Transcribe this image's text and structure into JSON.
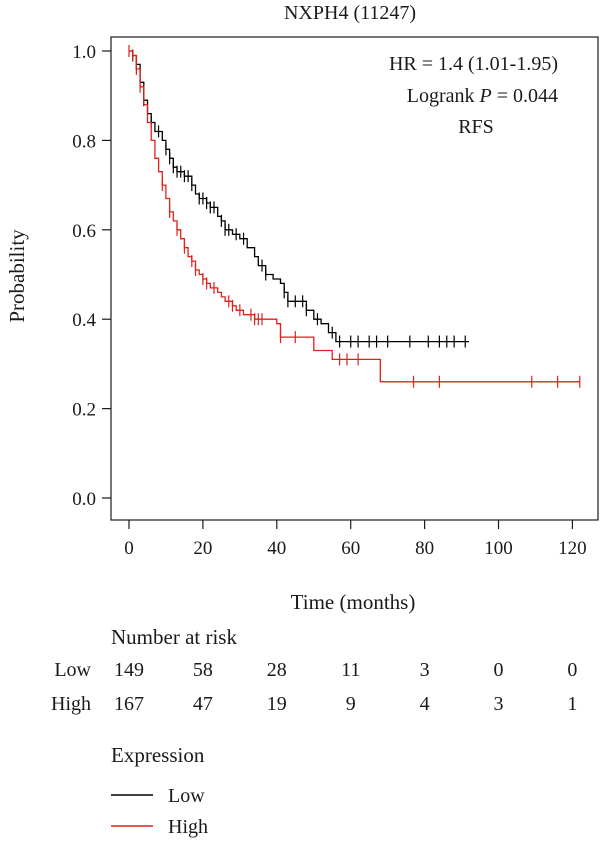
{
  "chart_data": {
    "type": "line",
    "title": "NXPH4 (11247)",
    "xlabel": "Time (months)",
    "ylabel": "Probability",
    "xlim": [
      0,
      125
    ],
    "ylim": [
      0,
      1.05
    ],
    "x_ticks": [
      0,
      20,
      40,
      60,
      80,
      100,
      120
    ],
    "y_ticks": [
      0.0,
      0.2,
      0.4,
      0.6,
      0.8,
      1.0
    ],
    "y_tick_labels": [
      "0.0",
      "0.2",
      "0.4",
      "0.6",
      "0.8",
      "1.0"
    ],
    "grid": false,
    "stats": {
      "hr_text": "HR = 1.4 (1.01-1.95)",
      "logrank_prefix": "Logrank ",
      "logrank_p_symbol": "P",
      "logrank_value": " = 0.044",
      "endpoint": "RFS"
    },
    "series": [
      {
        "name": "Low",
        "color": "#000000",
        "steps": [
          [
            0,
            1.0
          ],
          [
            1,
            0.99
          ],
          [
            2,
            0.97
          ],
          [
            3,
            0.93
          ],
          [
            4,
            0.89
          ],
          [
            5,
            0.86
          ],
          [
            6,
            0.84
          ],
          [
            7,
            0.82
          ],
          [
            9,
            0.8
          ],
          [
            10,
            0.78
          ],
          [
            11,
            0.76
          ],
          [
            12,
            0.74
          ],
          [
            13,
            0.73
          ],
          [
            15,
            0.72
          ],
          [
            17,
            0.7
          ],
          [
            18,
            0.68
          ],
          [
            19,
            0.67
          ],
          [
            21,
            0.66
          ],
          [
            22,
            0.65
          ],
          [
            24,
            0.63
          ],
          [
            25,
            0.62
          ],
          [
            26,
            0.6
          ],
          [
            28,
            0.59
          ],
          [
            30,
            0.58
          ],
          [
            32,
            0.56
          ],
          [
            34,
            0.54
          ],
          [
            35,
            0.52
          ],
          [
            37,
            0.5
          ],
          [
            39,
            0.49
          ],
          [
            41,
            0.48
          ],
          [
            42,
            0.46
          ],
          [
            43,
            0.44
          ],
          [
            48,
            0.42
          ],
          [
            50,
            0.4
          ],
          [
            52,
            0.39
          ],
          [
            54,
            0.37
          ],
          [
            56,
            0.35
          ],
          [
            92,
            0.35
          ]
        ],
        "censor_x": [
          1,
          2,
          4,
          6,
          8,
          10,
          11,
          12,
          13,
          14,
          15,
          16,
          17,
          19,
          20,
          21,
          22,
          23,
          25,
          26,
          27,
          29,
          31,
          36,
          37,
          42,
          43,
          45,
          47,
          48,
          51,
          55,
          57,
          60,
          62,
          65,
          67,
          70,
          76,
          81,
          84,
          86,
          88,
          91
        ]
      },
      {
        "name": "High",
        "color": "#e0201b",
        "steps": [
          [
            0,
            1.0
          ],
          [
            1,
            0.99
          ],
          [
            2,
            0.96
          ],
          [
            3,
            0.92
          ],
          [
            4,
            0.88
          ],
          [
            5,
            0.84
          ],
          [
            6,
            0.8
          ],
          [
            7,
            0.76
          ],
          [
            8,
            0.73
          ],
          [
            9,
            0.7
          ],
          [
            10,
            0.67
          ],
          [
            11,
            0.64
          ],
          [
            12,
            0.62
          ],
          [
            13,
            0.6
          ],
          [
            14,
            0.58
          ],
          [
            15,
            0.56
          ],
          [
            16,
            0.54
          ],
          [
            17,
            0.53
          ],
          [
            18,
            0.51
          ],
          [
            19,
            0.5
          ],
          [
            20,
            0.49
          ],
          [
            21,
            0.48
          ],
          [
            22,
            0.47
          ],
          [
            24,
            0.46
          ],
          [
            25,
            0.45
          ],
          [
            26,
            0.44
          ],
          [
            28,
            0.43
          ],
          [
            29,
            0.42
          ],
          [
            31,
            0.41
          ],
          [
            34,
            0.4
          ],
          [
            40,
            0.39
          ],
          [
            41,
            0.36
          ],
          [
            50,
            0.33
          ],
          [
            55,
            0.31
          ],
          [
            68,
            0.26
          ],
          [
            122,
            0.26
          ]
        ],
        "censor_x": [
          0,
          1,
          2,
          3,
          9,
          11,
          13,
          15,
          17,
          18,
          20,
          21,
          23,
          27,
          28,
          30,
          33,
          34,
          35,
          36,
          41,
          45,
          57,
          59,
          62,
          77,
          84,
          109,
          116,
          122
        ]
      }
    ],
    "risk_table": {
      "title": "Number at risk",
      "times": [
        0,
        20,
        40,
        60,
        80,
        100,
        120
      ],
      "rows": [
        {
          "label": "Low",
          "values": [
            "149",
            "58",
            "28",
            "11",
            "3",
            "0",
            "0"
          ]
        },
        {
          "label": "High",
          "values": [
            "167",
            "47",
            "19",
            "9",
            "4",
            "3",
            "1"
          ]
        }
      ]
    },
    "legend": {
      "title": "Expression",
      "position": "bottom-left",
      "items": [
        {
          "label": "Low",
          "color": "#000000"
        },
        {
          "label": "High",
          "color": "#e0201b"
        }
      ]
    }
  }
}
